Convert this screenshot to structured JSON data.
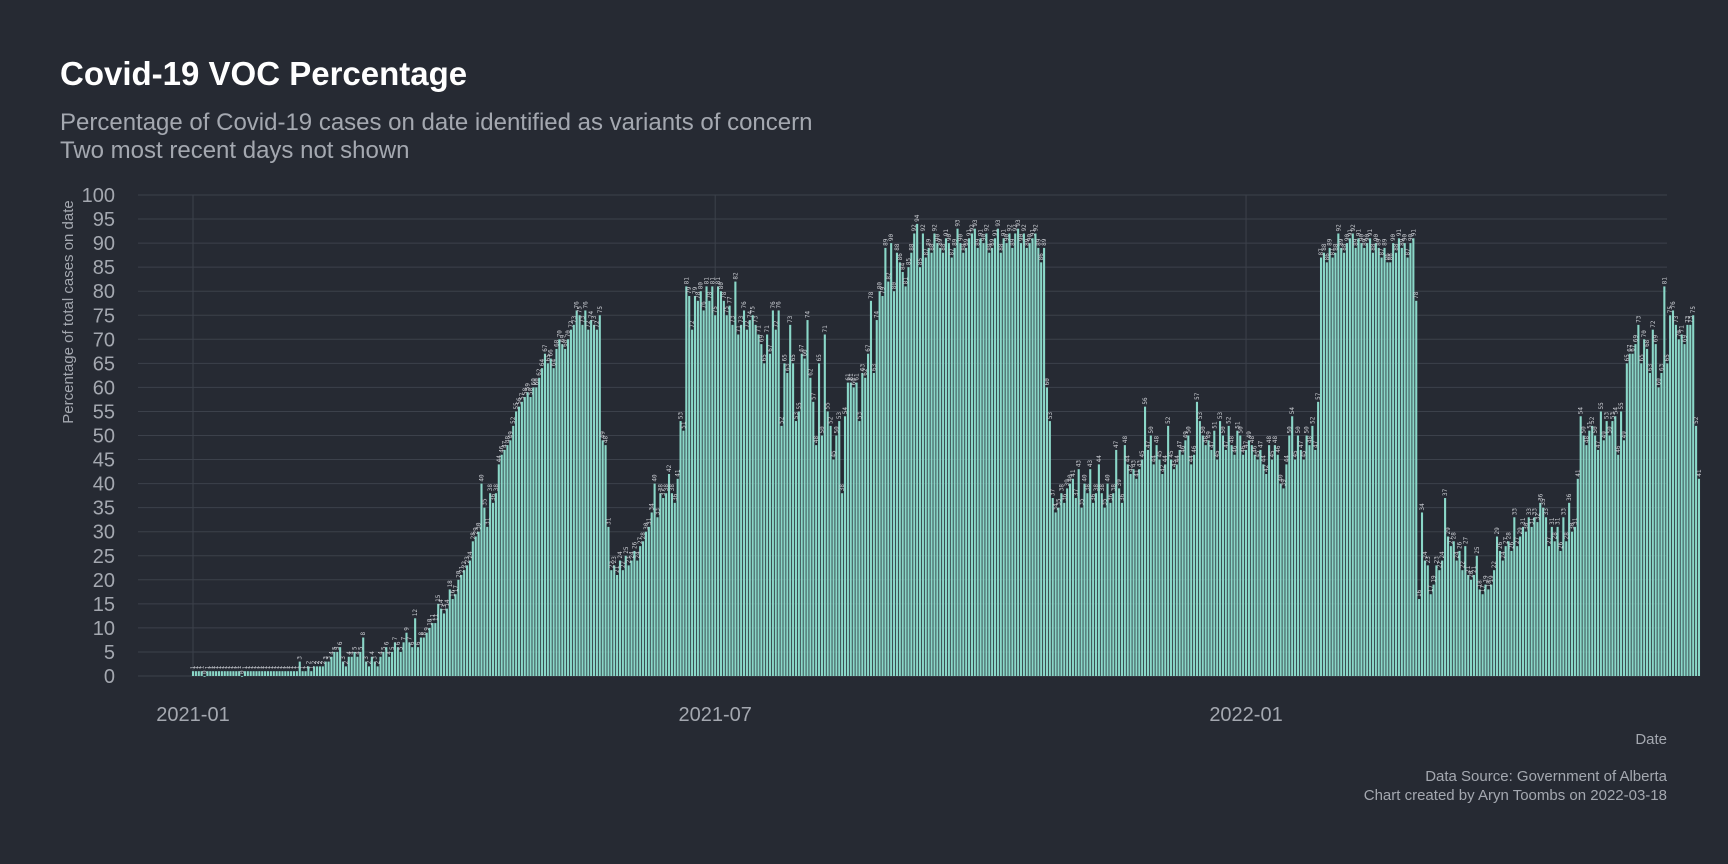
{
  "colors": {
    "background": "#262a33",
    "bar": "#8ad7c8",
    "grid": "#3c414b",
    "text": "#a4a8b0",
    "title": "#ffffff"
  },
  "chart_data": {
    "type": "bar",
    "title": "Covid-19 VOC Percentage",
    "subtitle": [
      "Percentage of Covid-19 cases on date identified as variants of concern",
      "Two most recent days not shown"
    ],
    "xlabel": "Date",
    "ylabel": "Percentage of total cases on date",
    "caption": [
      "Data Source: Government of Alberta",
      "Chart created by Aryn Toombs on 2022-03-18"
    ],
    "start_date": "2021-01-01",
    "ylim": [
      0,
      100
    ],
    "yticks": [
      0,
      5,
      10,
      15,
      20,
      25,
      30,
      35,
      40,
      45,
      50,
      55,
      60,
      65,
      70,
      75,
      80,
      85,
      90,
      95,
      100
    ],
    "xticks": [
      {
        "date": "2021-01-01",
        "label": "2021-01"
      },
      {
        "date": "2021-07-01",
        "label": "2021-07"
      },
      {
        "date": "2022-01-01",
        "label": "2022-01"
      }
    ],
    "grid": true,
    "values": [
      1,
      1,
      1,
      1,
      0,
      1,
      1,
      1,
      1,
      1,
      1,
      1,
      1,
      1,
      1,
      1,
      1,
      0,
      1,
      1,
      1,
      1,
      1,
      1,
      1,
      1,
      1,
      1,
      1,
      1,
      1,
      1,
      1,
      1,
      1,
      1,
      1,
      3,
      1,
      1,
      2,
      1,
      2,
      2,
      2,
      2,
      3,
      3,
      4,
      5,
      5,
      6,
      3,
      2,
      4,
      4,
      5,
      4,
      5,
      8,
      3,
      2,
      4,
      3,
      2,
      4,
      5,
      6,
      4,
      5,
      7,
      6,
      5,
      7,
      9,
      7,
      6,
      12,
      6,
      8,
      8,
      9,
      10,
      11,
      11,
      15,
      14,
      13,
      14,
      18,
      16,
      17,
      20,
      21,
      22,
      23,
      24,
      28,
      29,
      30,
      40,
      35,
      31,
      38,
      36,
      38,
      44,
      46,
      47,
      48,
      49,
      52,
      55,
      56,
      57,
      58,
      59,
      58,
      60,
      60,
      62,
      64,
      67,
      65,
      66,
      64,
      68,
      70,
      69,
      68,
      70,
      72,
      73,
      76,
      75,
      73,
      76,
      72,
      74,
      73,
      72,
      75,
      49,
      48,
      31,
      22,
      23,
      21,
      24,
      22,
      25,
      23,
      24,
      26,
      24,
      27,
      28,
      30,
      31,
      34,
      40,
      33,
      38,
      37,
      38,
      42,
      38,
      36,
      41,
      53,
      51,
      81,
      79,
      72,
      79,
      78,
      80,
      76,
      81,
      78,
      81,
      75,
      81,
      80,
      78,
      75,
      77,
      73,
      82,
      71,
      73,
      76,
      72,
      74,
      75,
      73,
      71,
      69,
      65,
      71,
      67,
      76,
      72,
      76,
      52,
      65,
      63,
      73,
      65,
      53,
      55,
      67,
      66,
      74,
      62,
      57,
      48,
      65,
      50,
      71,
      55,
      52,
      45,
      50,
      53,
      38,
      54,
      61,
      61,
      60,
      61,
      53,
      63,
      62,
      67,
      78,
      63,
      74,
      80,
      79,
      89,
      82,
      90,
      80,
      88,
      86,
      84,
      81,
      85,
      88,
      92,
      94,
      85,
      92,
      87,
      89,
      88,
      92,
      90,
      89,
      88,
      91,
      90,
      87,
      89,
      93,
      90,
      88,
      89,
      91,
      92,
      93,
      89,
      91,
      90,
      92,
      88,
      89,
      91,
      93,
      88,
      91,
      90,
      92,
      89,
      92,
      93,
      90,
      92,
      89,
      90,
      91,
      92,
      89,
      86,
      89,
      60,
      53,
      37,
      34,
      35,
      38,
      36,
      39,
      40,
      41,
      37,
      43,
      35,
      40,
      38,
      43,
      36,
      38,
      44,
      38,
      35,
      40,
      36,
      38,
      47,
      39,
      36,
      48,
      44,
      42,
      43,
      41,
      43,
      45,
      56,
      47,
      50,
      44,
      48,
      45,
      42,
      44,
      52,
      45,
      43,
      44,
      47,
      46,
      49,
      50,
      44,
      46,
      57,
      53,
      50,
      48,
      49,
      47,
      51,
      45,
      53,
      50,
      47,
      52,
      48,
      46,
      51,
      50,
      46,
      47,
      49,
      48,
      46,
      45,
      47,
      44,
      42,
      48,
      45,
      48,
      46,
      40,
      39,
      44,
      50,
      54,
      45,
      50,
      47,
      45,
      50,
      48,
      52,
      47,
      57,
      87,
      88,
      86,
      89,
      87,
      88,
      92,
      89,
      88,
      90,
      91,
      92,
      89,
      91,
      90,
      89,
      90,
      91,
      88,
      90,
      89,
      87,
      89,
      86,
      86,
      90,
      88,
      91,
      89,
      90,
      87,
      90,
      91,
      78,
      16,
      34,
      24,
      23,
      17,
      19,
      23,
      22,
      24,
      37,
      29,
      27,
      28,
      24,
      26,
      22,
      27,
      21,
      20,
      21,
      25,
      18,
      17,
      19,
      18,
      19,
      22,
      29,
      26,
      24,
      27,
      28,
      26,
      33,
      27,
      29,
      31,
      30,
      33,
      31,
      33,
      32,
      36,
      35,
      33,
      27,
      31,
      28,
      31,
      26,
      33,
      28,
      36,
      30,
      31,
      41,
      54,
      50,
      48,
      51,
      52,
      50,
      47,
      55,
      49,
      53,
      50,
      53,
      54,
      46,
      55,
      49,
      65,
      67,
      67,
      69,
      73,
      65,
      70,
      68,
      63,
      72,
      69,
      60,
      63,
      81,
      65,
      75,
      76,
      73,
      70,
      71,
      69,
      73,
      73,
      75,
      52,
      41
    ]
  }
}
